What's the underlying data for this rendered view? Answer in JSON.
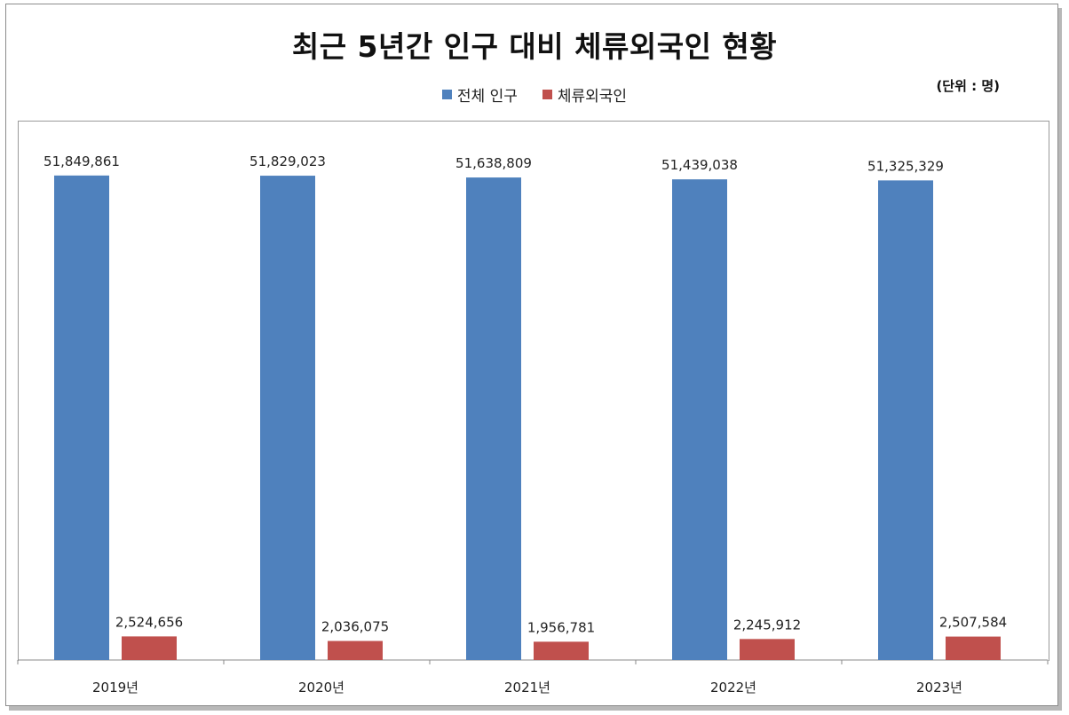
{
  "chart_data": {
    "type": "bar",
    "title": "최근 5년간 인구 대비 체류외국인 현황",
    "unit_label": "(단위 : 명)",
    "categories": [
      "2019년",
      "2020년",
      "2021년",
      "2022년",
      "2023년"
    ],
    "series": [
      {
        "name": "전체 인구",
        "color": "#4f81bd",
        "values": [
          51849861,
          51829023,
          51638809,
          51439038,
          51325329
        ],
        "labels": [
          "51,849,861",
          "51,829,023",
          "51,638,809",
          "51,439,038",
          "51,325,329"
        ]
      },
      {
        "name": "체류외국인",
        "color": "#c0504d",
        "values": [
          2524656,
          2036075,
          1956781,
          2245912,
          2507584
        ],
        "labels": [
          "2,524,656",
          "2,036,075",
          "1,956,781",
          "2,245,912",
          "2,507,584"
        ]
      }
    ],
    "ylim": [
      0,
      60000000
    ],
    "legend_position": "top-center",
    "grid": false
  }
}
